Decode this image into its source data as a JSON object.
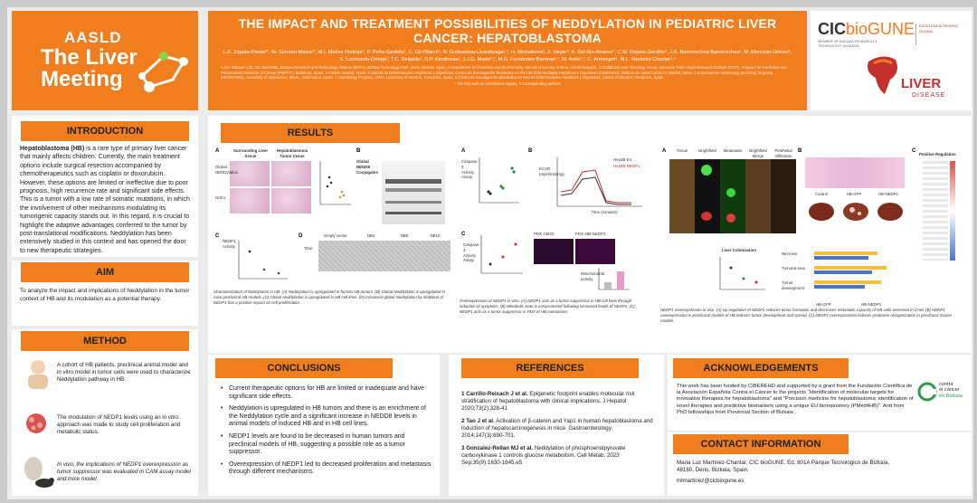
{
  "header": {
    "conference_org": "AASLD",
    "conference_name": "The Liver Meeting",
    "title": "THE IMPACT AND TREATMENT POSSIBILITIES OF NEDDYLATION IN PEDIATRIC LIVER CANCER: HEPATOBLASTOMA",
    "authors": "L.E. Zapata-Pavas¹*, M. Serrano-Macia¹*, M.I. Merlos Rodrigo², P. Peña-Sanfelix¹, C. Gil-Pitarch¹, N. Goikoetxea-Usandizaga¹,³, H. Michalkova², Z. Heger², A. Del Rio-Alvarez⁴, C.M. Rejano-Gordillo⁵, J.A. Barrenechea-Barrenechea¹, M. Mercado-Gómez¹, S. Lachiondo-Ortega¹, T.C. Delgado¹, D.P. Kinslinnas¹, J.J.G. Marin³,⁶, M.G. Fernández-Barrena³,⁷, M. Avila³,⁷, C. Armengol⁴, M.L. Martinez-Chantar¹,³",
    "affiliations": "¹Liver Disease Lab, CIC bioGUNE, Basque Research and Technology Alliance (BRTA), Bizkaia Technology Park, Derio, Bizkaia, Spain. 2 Department of Chemistry and Biochemistry, Mendel University in Brno, Czech Republic. 3 Childhood Liver Oncology Group, Germans Trias i Pujol Research Institute (IGTP), Program for Predictive and Personalized Medicine of Cancer (PMPPC), Badalona, Spain. 4 CIBER, Madrid, Spain. 5 Unidad de Enfermedades Hepáticas y Digestivas, Centro de Investigación Biomédica en Red de Enfermedades Hepáticas y Digestivas (CIBERehd), Instituto de Salud Carlos III, Madrid, Spain. 6 Experimental Hepatology and Drug Targeting (HEVEFARM), University of Salamanca, IBSAL, Salamanca, Spain. 7 Hepatology Program, CIMA, University of Navarra, Pamplona, Spain. 8 Centro de Investigación Biomédica en Red de Enfermedades Hepáticas y Digestivas, Centro of Navarre, Pamplona, Spain.",
    "footnote": "* The first authors contributed equally. # Corresponding authors",
    "institute_name": "CIC",
    "institute_suffix": "bioGUNE",
    "institute_sub": "MEMBER OF BASQUE RESEARCH & TECHNOLOGY ALLIANCE",
    "severo_label": "EXCELENCIA SEVERO OCHOA",
    "lab_name": "LIVER",
    "lab_sub": "DISEASE"
  },
  "introduction": {
    "title": "INTRODUCTION",
    "lead": "Hepatoblastoma (HB)",
    "text": " is a rare type of primary liver cancer that mainly affects children. Currently, the main treatment options include surgical resection accompanied by chemotherapeutics such as cisplatin or doxorubicin. However, these options are limited or ineffective due to poor prognosis, high recurrence rate and significant side effects. This is a tumor with a low rate of somatic mutations, in which the involvement of other mechanisms modulating its tumorigenic capacity stands out. In this regard, it is crucial to highlight the adaptive advantages conferred to the tumor by post-translational modifications. Neddylation has been extensively studied in this context and has opened the door to new therapeutic strategies."
  },
  "aim": {
    "title": "AIM",
    "text": "To analyze the impact and implications of Neddylation in the tumor context of HB and its modulation as a potential therapy."
  },
  "method": {
    "title": "METHOD",
    "items": [
      "A cohort of HB patients, preclinical animal model and in vitro model in tumor cells were used to characterize Neddylation pathway in HB.",
      "The modulation of NEDP1 levels using an in vitro approach was made to study cell proliferation and metabolic status.",
      "In vivo, the implications of NEDP1 overexpression as tumor suppressor was evaluated in CAM assay model and mice model."
    ]
  },
  "results": {
    "title": "RESULTS",
    "caption1": "Characterization of Neddylation in HB. (A) Neddylation is upregulated in human HB tumors. (B) Global Neddylation is upregulated in mice preclinical HB models. (C) Global Neddylation is upregulated in HB cell lines. (D) Increased global Neddylation by inhibition of NEDP1 has a positive impact on cell proliferation.",
    "caption2": "Overexpression of NEDP1 in vitro. (A) NEDP1 acts as a tumor suppressor in HB cell lines through induction of apoptosis. (B) Metabolic state is compromised following increased levels of NEDP1. (C) NEDP1 acts as a tumor suppressor in PDX of HB metastases.",
    "caption3": "NEDP1 overexpression in vivo. (A) Up regulation of NEDP1 reduces tumor formation and decreases metastatic capacity of HB cells assessed in CAM. (B) NEDP1 overexpression in preclinical models of HB reduces tumor development and spread. (C) NEDP1 overexpression induces proteome reorganization in preclinical mouse models.",
    "fig1": {
      "a_col1": "Surrounding Liver tissue",
      "a_col2": "Hepatoblastoma Tumor tissue",
      "a_row1": "Global NEDDylation",
      "a_row2": "NAE1",
      "a_ylabel": "NEDP1 Activity",
      "b_title": "Global NEDD8 Conjugates",
      "c_ylabel": "NEDP1 Activity",
      "d_cols": [
        "Empty vector",
        "NB2",
        "NB8",
        "NB10"
      ],
      "d_row": "Time"
    },
    "fig2": {
      "a_ylabel": "Caspase-3 Activity Assay",
      "b_legend": [
        "Hep3B EV",
        "Hep3B NEDP1"
      ],
      "b_xlabel": "Time (minutes)",
      "b_ylabel": "ECAR (mpH/min/mg)",
      "c_ylabel": "Caspase-3 Activity Assay",
      "c_panels": [
        "PDX 23610",
        "PDX 268 NEDP1"
      ],
      "c_ylabel2": "Mitochondrial activity"
    },
    "fig3": {
      "a_cols": [
        "Tissue",
        "Brightfield",
        "Metastasis",
        "Brightfield Merge",
        "Perithelial Infiltration"
      ],
      "b_groups": [
        "Control",
        "HB-GFP",
        "HB-NEDP1"
      ],
      "b_chart_label": "Liver Colonization",
      "c_title": "Positive Regulation",
      "c_legend": [
        "HB-GFP",
        "HB-NEDP1"
      ],
      "c_rows": [
        "Necrosis",
        "Tumoral area",
        "Tumor development"
      ]
    }
  },
  "conclusions": {
    "title": "CONCLUSIONS",
    "items": [
      "Current therapeutic options for HB are limited or inadequate and have significant side effects.",
      "Neddylation is upregulated in HB tumors and there is an enrichment of the Neddylation cycle and a significant increase in NEDD8 levels in animal models of induced HB and in HB cell lines.",
      "NEDP1 levels are found to be decreased in human tumors and preclinical models of HB, suggesting a possible role as a tumor suppressor.",
      "Overexpression of NEDP1 led to decreased proliferation and metastasis through different mechanisms."
    ]
  },
  "references": {
    "title": "REFERENCES",
    "items": [
      {
        "num": "1",
        "authors": "Carrillo-Reixach J et al.",
        "text": " Epigenetic footprint enables molecular risk stratification of hepatoblastoma with clinical implications. J Hepatol 2020;73(2):328-41"
      },
      {
        "num": "2",
        "authors": "Tao J et al.",
        "text": " Activation of β-catenin and Yap1 in human hepatoblastoma and induction of hepatocarcinogenesis in mice. Gastroenterology. 2014;147(3):690-701."
      },
      {
        "num": "3",
        "authors": "Gonzalez-Rellan MJ et al.",
        "text": " Neddylation of phosphoenolpyruvate carboxykinase 1 controls glucose metabolism. Cell Metab. 2023 Sep;35(9):1630-1645.e5"
      }
    ]
  },
  "acknowledgements": {
    "title": "ACKNOWLEDGEMENTS",
    "text": "This work has been funded by CIBEREHD and supported by a grant from the Fundación Científica de la Asociación Española Contra el Cáncer to the projects \"Identification of molecular targets for innovative therapies for hepatoblastoma\" and \"Precision medicine for hepatoblastoma: identification of novel therapies and predictive biomarkers using a unique EU biorepository (PMed4HB)\". And from PhD fellowships from Provincial Section of Bizkaia .",
    "sponsor_line1": "contra",
    "sponsor_line2": "el cáncer",
    "sponsor_line3": "en Bizkaia"
  },
  "contact": {
    "title": "CONTACT INFORMATION",
    "address": "Maria Luz Martínez-Chantar, CIC bioGUNE, Ed. 801A Parque Tecnológico de Bizkaia, 48160, Derio, Bizkaia, Spain.",
    "email": "mlmartinez@cicbiogune.es"
  },
  "colors": {
    "accent": "#f07d1e",
    "background": "#ececec",
    "panel": "#ffffff",
    "brand_red": "#c4302b"
  }
}
